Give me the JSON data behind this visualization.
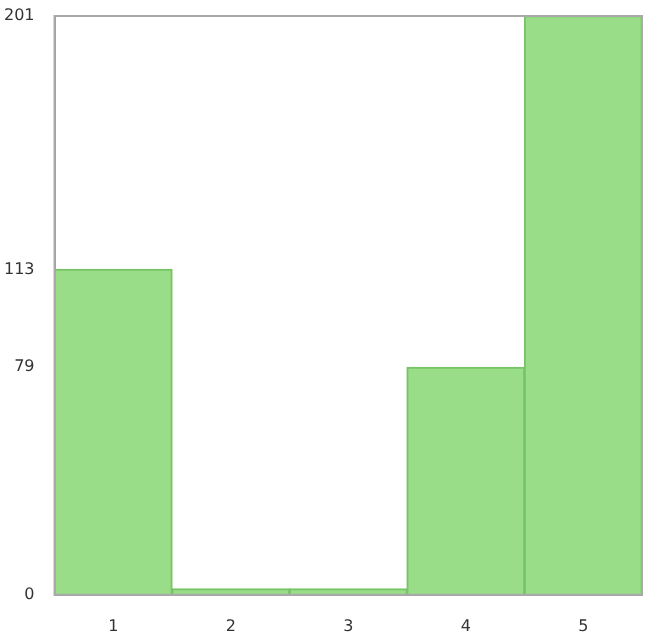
{
  "chart_data": {
    "type": "bar",
    "categories": [
      "1",
      "2",
      "3",
      "4",
      "5"
    ],
    "values": [
      113,
      0,
      0,
      79,
      201
    ],
    "color": "#99dd88",
    "ylim": [
      0,
      201
    ],
    "yticks": [
      0,
      79,
      113,
      201
    ],
    "grid": false,
    "legend": false
  }
}
